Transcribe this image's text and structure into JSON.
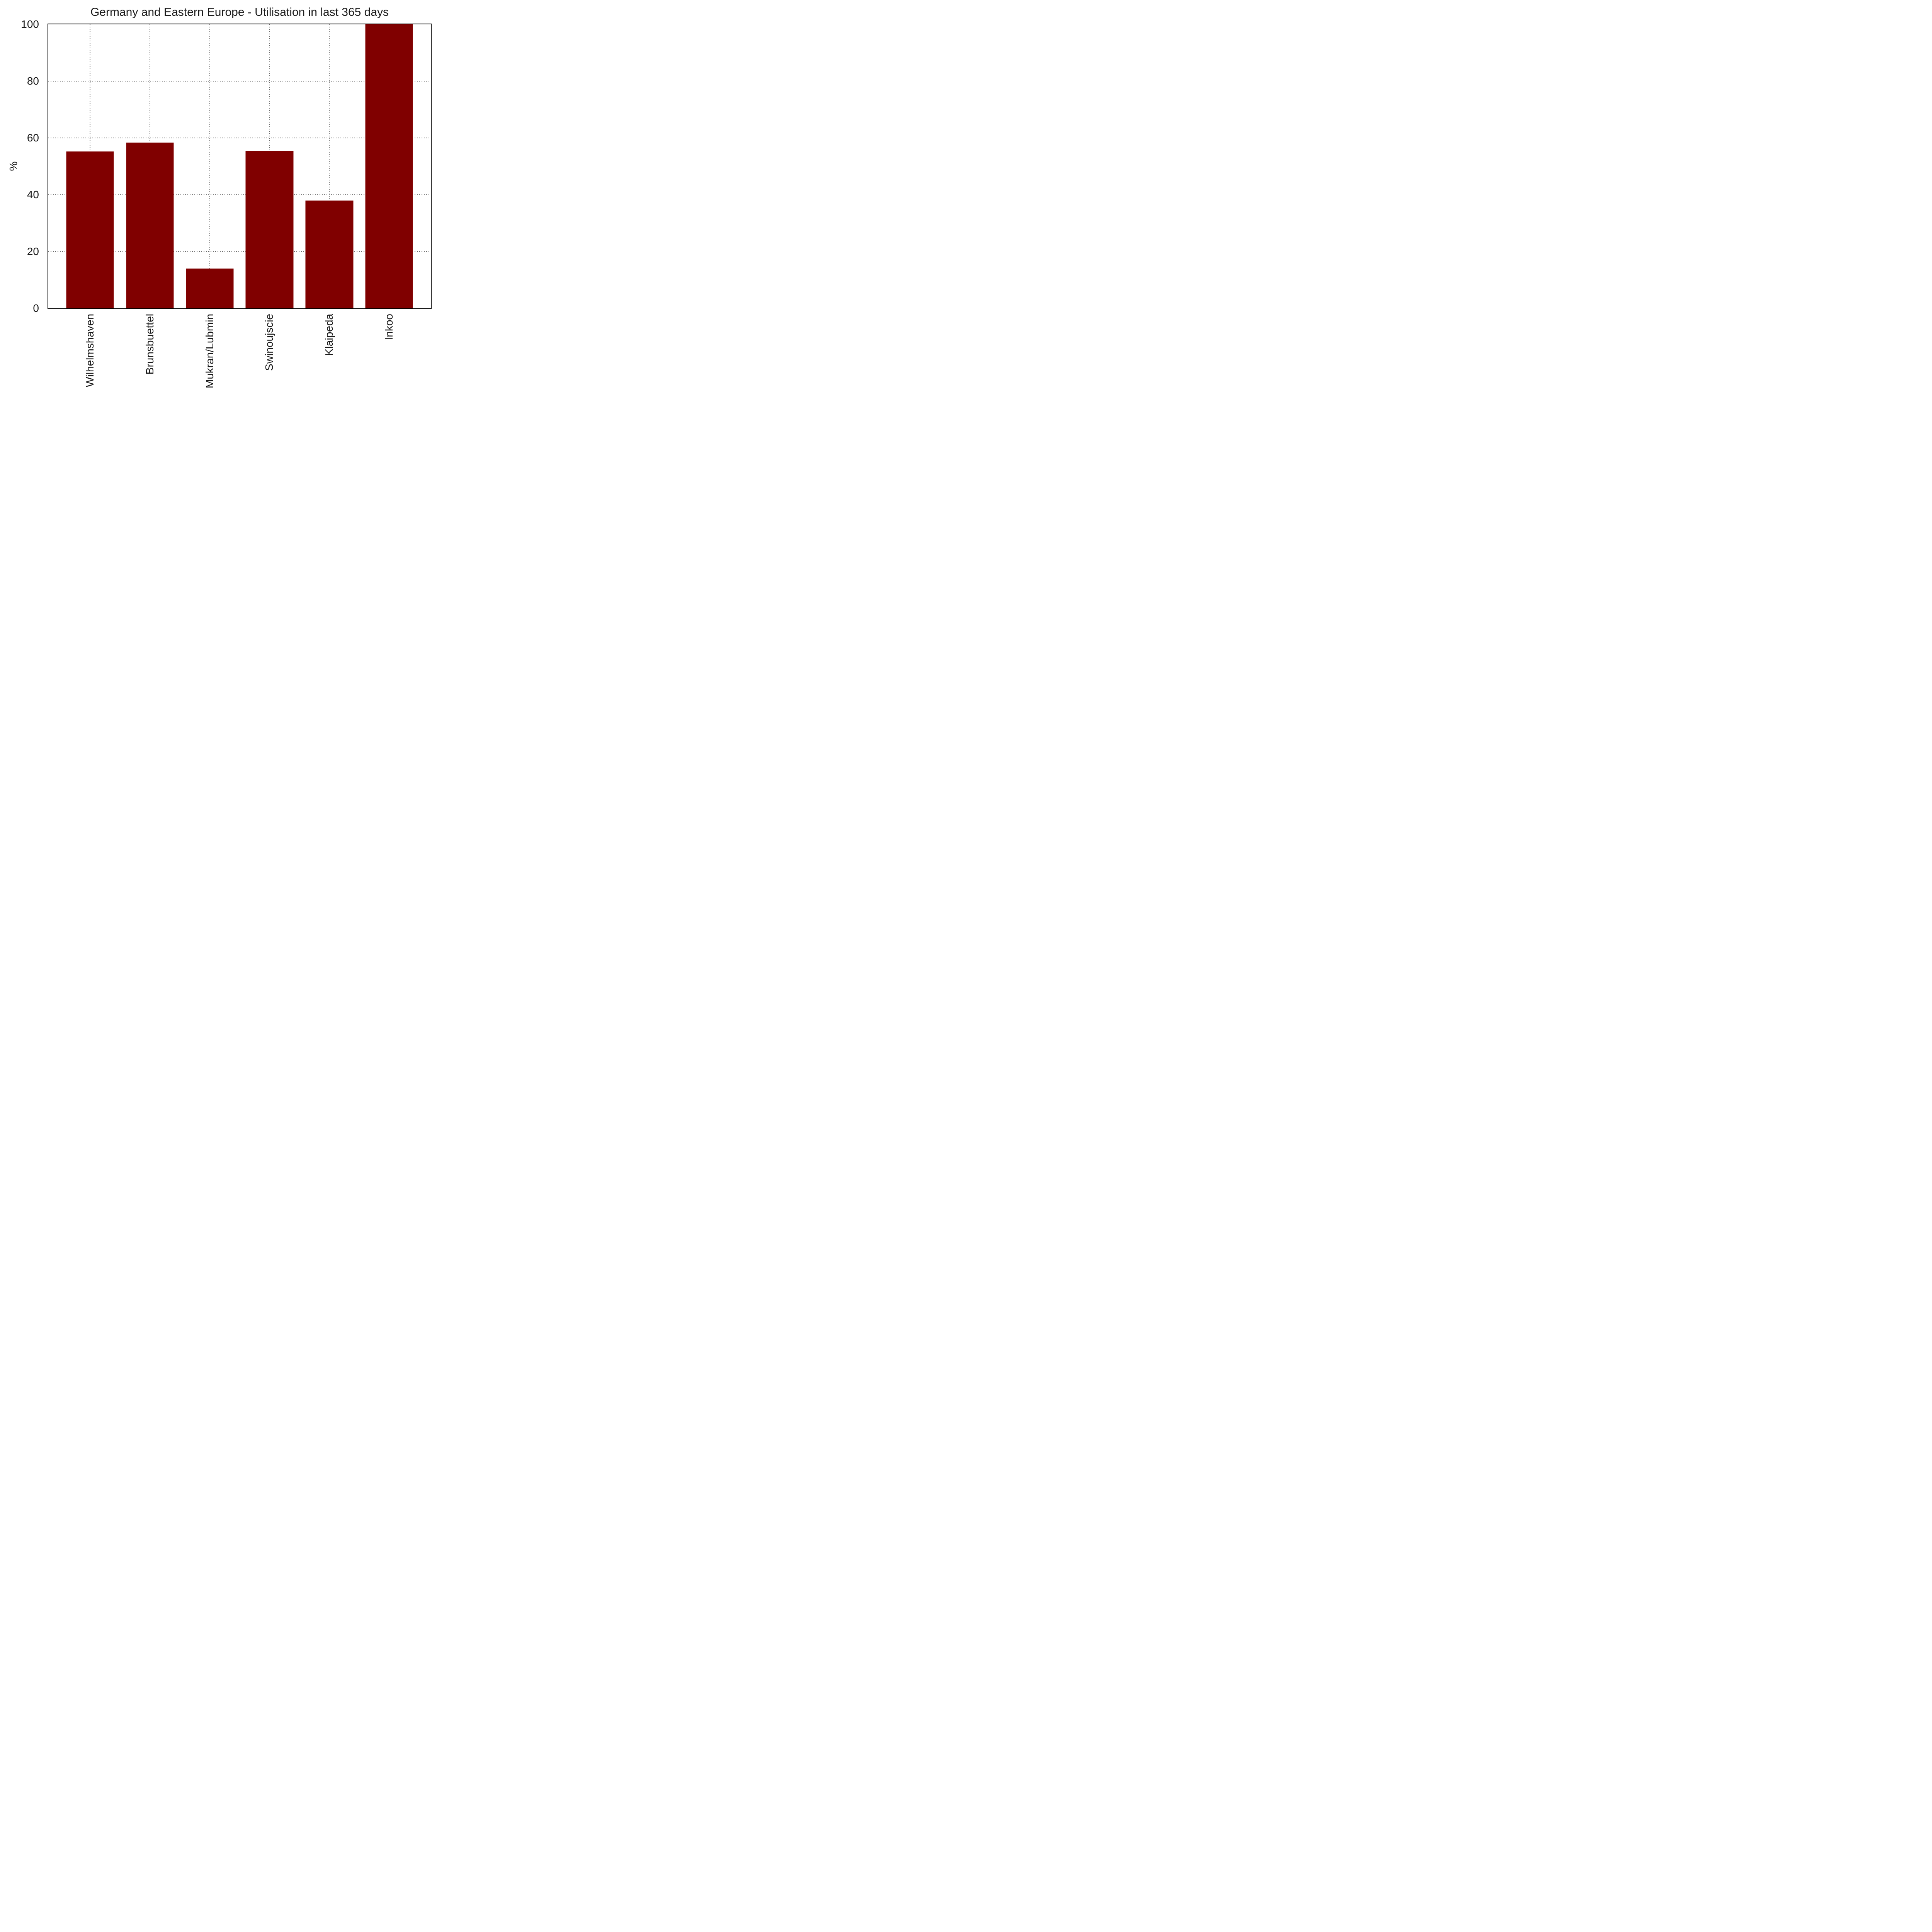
{
  "chart_data": {
    "type": "bar",
    "title": "Germany and Eastern Europe - Utilisation in last 365 days",
    "categories": [
      "Wilhelmshaven",
      "Brunsbuettel",
      "Mukran/Lubmin",
      "Swinoujscie",
      "Klaipeda",
      "Inkoo"
    ],
    "values": [
      55.2,
      58.4,
      14.0,
      55.5,
      38.0,
      100.0
    ],
    "xlabel": "",
    "ylabel": "%",
    "ylim": [
      0,
      100
    ],
    "yticks": [
      0,
      20,
      40,
      60,
      80,
      100
    ],
    "grid": true,
    "grid_style": "dotted",
    "legend": "none",
    "bar_color": "#800000",
    "grid_color": "#696969",
    "spine_color": "#000000",
    "text_color": "#1a1a1a"
  }
}
